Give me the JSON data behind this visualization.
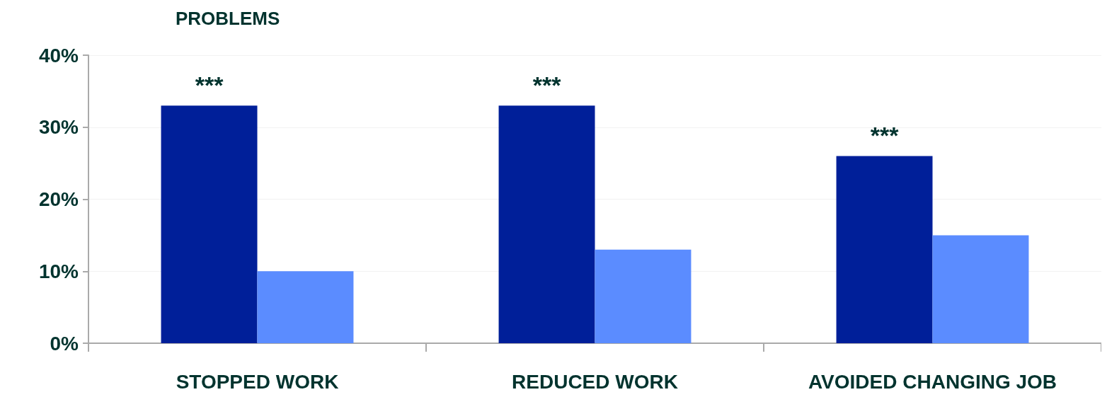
{
  "chart_data": {
    "type": "bar",
    "title": "PROBLEMS",
    "categories": [
      "STOPPED WORK",
      "REDUCED WORK",
      "AVOIDED CHANGING JOB"
    ],
    "series": [
      {
        "color": "#001f99",
        "values": [
          33,
          33,
          26
        ]
      },
      {
        "color": "#5b8cff",
        "values": [
          10,
          13,
          15
        ]
      }
    ],
    "ylim": [
      0,
      40
    ],
    "yticks": [
      {
        "value": 0,
        "label": "0%"
      },
      {
        "value": 10,
        "label": "10%"
      },
      {
        "value": 20,
        "label": "20%"
      },
      {
        "value": 30,
        "label": "30%"
      },
      {
        "value": 40,
        "label": "40%"
      }
    ],
    "grid": "y",
    "annotations": [
      {
        "text": "***",
        "x": "STOPPED WORK",
        "y": 33
      },
      {
        "text": "***",
        "x": "REDUCED WORK",
        "y": 33
      },
      {
        "text": "***",
        "x": "AVOIDED CHANGING JOB",
        "y": 26
      }
    ]
  }
}
